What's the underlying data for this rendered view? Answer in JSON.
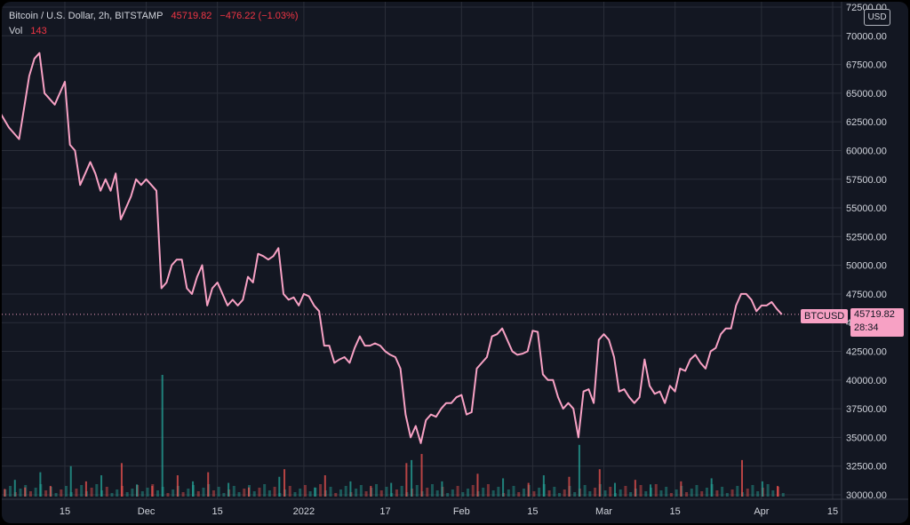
{
  "header": {
    "symbol_line": "Bitcoin / U.S. Dollar, 2h, BITSTAMP",
    "last_price": "45719.82",
    "change": "−476.22 (−1.03%)",
    "volume_label": "Vol",
    "volume_value": "143"
  },
  "price_scale": {
    "currency": "USD",
    "tick_labels": [
      "72500.00",
      "70000.00",
      "67500.00",
      "65000.00",
      "62500.00",
      "60000.00",
      "57500.00",
      "55000.00",
      "52500.00",
      "50000.00",
      "47500.00",
      "45000.00",
      "42500.00",
      "40000.00",
      "37500.00",
      "35000.00",
      "32500.00",
      "30000.00"
    ],
    "symbol_tag": "BTCUSD",
    "last_price_tag": "45719.82",
    "countdown": "28:34"
  },
  "time_axis": {
    "tick_labels": [
      "15",
      "Dec",
      "15",
      "2022",
      "17",
      "Feb",
      "15",
      "Mar",
      "15",
      "Apr",
      "15"
    ]
  },
  "colors": {
    "background": "#131722",
    "line": "#f7a1c4",
    "grid": "#2a2e39",
    "text": "#d1d4dc",
    "volume_up": "#26a69a",
    "volume_down": "#ef5350"
  },
  "chart_data": {
    "type": "line",
    "title": "Bitcoin / U.S. Dollar, 2h, BITSTAMP",
    "ylim": [
      30000,
      72500
    ],
    "xlim": [
      "2021-11-02",
      "2022-04-19"
    ],
    "grid": true,
    "series": [
      {
        "name": "BTCUSD",
        "points": [
          [
            "2021-11-02",
            63500
          ],
          [
            "2021-11-04",
            62000
          ],
          [
            "2021-11-06",
            61000
          ],
          [
            "2021-11-08",
            66500
          ],
          [
            "2021-11-09",
            68000
          ],
          [
            "2021-11-10",
            68500
          ],
          [
            "2021-11-11",
            65000
          ],
          [
            "2021-11-12",
            64500
          ],
          [
            "2021-11-13",
            64000
          ],
          [
            "2021-11-14",
            65000
          ],
          [
            "2021-11-15",
            66000
          ],
          [
            "2021-11-16",
            60500
          ],
          [
            "2021-11-17",
            60000
          ],
          [
            "2021-11-18",
            57000
          ],
          [
            "2021-11-19",
            58000
          ],
          [
            "2021-11-20",
            59000
          ],
          [
            "2021-11-21",
            58000
          ],
          [
            "2021-11-22",
            56500
          ],
          [
            "2021-11-23",
            57500
          ],
          [
            "2021-11-24",
            56500
          ],
          [
            "2021-11-25",
            58000
          ],
          [
            "2021-11-26",
            54000
          ],
          [
            "2021-11-27",
            55000
          ],
          [
            "2021-11-28",
            56000
          ],
          [
            "2021-11-29",
            57500
          ],
          [
            "2021-11-30",
            57000
          ],
          [
            "2021-12-01",
            57500
          ],
          [
            "2021-12-02",
            57000
          ],
          [
            "2021-12-03",
            56500
          ],
          [
            "2021-12-04",
            48000
          ],
          [
            "2021-12-05",
            48500
          ],
          [
            "2021-12-06",
            50000
          ],
          [
            "2021-12-07",
            50500
          ],
          [
            "2021-12-08",
            50500
          ],
          [
            "2021-12-09",
            48000
          ],
          [
            "2021-12-10",
            47500
          ],
          [
            "2021-12-11",
            49000
          ],
          [
            "2021-12-12",
            50000
          ],
          [
            "2021-12-13",
            46500
          ],
          [
            "2021-12-14",
            48000
          ],
          [
            "2021-12-15",
            48500
          ],
          [
            "2021-12-16",
            47500
          ],
          [
            "2021-12-17",
            46500
          ],
          [
            "2021-12-18",
            47000
          ],
          [
            "2021-12-19",
            46500
          ],
          [
            "2021-12-20",
            47000
          ],
          [
            "2021-12-21",
            49000
          ],
          [
            "2021-12-22",
            48500
          ],
          [
            "2021-12-23",
            51000
          ],
          [
            "2021-12-24",
            50800
          ],
          [
            "2021-12-25",
            50500
          ],
          [
            "2021-12-26",
            50800
          ],
          [
            "2021-12-27",
            51500
          ],
          [
            "2021-12-28",
            47500
          ],
          [
            "2021-12-29",
            47000
          ],
          [
            "2021-12-30",
            47200
          ],
          [
            "2021-12-31",
            46500
          ],
          [
            "2022-01-01",
            47500
          ],
          [
            "2022-01-02",
            47300
          ],
          [
            "2022-01-03",
            46500
          ],
          [
            "2022-01-04",
            46000
          ],
          [
            "2022-01-05",
            43000
          ],
          [
            "2022-01-06",
            43000
          ],
          [
            "2022-01-07",
            41500
          ],
          [
            "2022-01-08",
            41800
          ],
          [
            "2022-01-09",
            42000
          ],
          [
            "2022-01-10",
            41500
          ],
          [
            "2022-01-11",
            42800
          ],
          [
            "2022-01-12",
            43800
          ],
          [
            "2022-01-13",
            43000
          ],
          [
            "2022-01-14",
            43000
          ],
          [
            "2022-01-15",
            43200
          ],
          [
            "2022-01-16",
            43000
          ],
          [
            "2022-01-17",
            42500
          ],
          [
            "2022-01-18",
            42200
          ],
          [
            "2022-01-19",
            42000
          ],
          [
            "2022-01-20",
            41000
          ],
          [
            "2022-01-21",
            37000
          ],
          [
            "2022-01-22",
            35000
          ],
          [
            "2022-01-23",
            36000
          ],
          [
            "2022-01-24",
            34500
          ],
          [
            "2022-01-25",
            36500
          ],
          [
            "2022-01-26",
            37000
          ],
          [
            "2022-01-27",
            36800
          ],
          [
            "2022-01-28",
            37500
          ],
          [
            "2022-01-29",
            38000
          ],
          [
            "2022-01-30",
            38000
          ],
          [
            "2022-01-31",
            38500
          ],
          [
            "2022-02-01",
            38700
          ],
          [
            "2022-02-02",
            37000
          ],
          [
            "2022-02-03",
            37200
          ],
          [
            "2022-02-04",
            41000
          ],
          [
            "2022-02-05",
            41500
          ],
          [
            "2022-02-06",
            42000
          ],
          [
            "2022-02-07",
            43800
          ],
          [
            "2022-02-08",
            44000
          ],
          [
            "2022-02-09",
            44500
          ],
          [
            "2022-02-10",
            43500
          ],
          [
            "2022-02-11",
            42500
          ],
          [
            "2022-02-12",
            42200
          ],
          [
            "2022-02-13",
            42300
          ],
          [
            "2022-02-14",
            42500
          ],
          [
            "2022-02-15",
            44300
          ],
          [
            "2022-02-16",
            44200
          ],
          [
            "2022-02-17",
            40500
          ],
          [
            "2022-02-18",
            40000
          ],
          [
            "2022-02-19",
            40000
          ],
          [
            "2022-02-20",
            38500
          ],
          [
            "2022-02-21",
            37500
          ],
          [
            "2022-02-22",
            38000
          ],
          [
            "2022-02-23",
            37500
          ],
          [
            "2022-02-24",
            35000
          ],
          [
            "2022-02-25",
            39000
          ],
          [
            "2022-02-26",
            39200
          ],
          [
            "2022-02-27",
            38000
          ],
          [
            "2022-02-28",
            43500
          ],
          [
            "2022-03-01",
            44000
          ],
          [
            "2022-03-02",
            43500
          ],
          [
            "2022-03-03",
            42000
          ],
          [
            "2022-03-04",
            39000
          ],
          [
            "2022-03-05",
            39200
          ],
          [
            "2022-03-06",
            38500
          ],
          [
            "2022-03-07",
            38000
          ],
          [
            "2022-03-08",
            38500
          ],
          [
            "2022-03-09",
            41800
          ],
          [
            "2022-03-10",
            39500
          ],
          [
            "2022-03-11",
            38800
          ],
          [
            "2022-03-12",
            39000
          ],
          [
            "2022-03-13",
            38000
          ],
          [
            "2022-03-14",
            39500
          ],
          [
            "2022-03-15",
            39000
          ],
          [
            "2022-03-16",
            41000
          ],
          [
            "2022-03-17",
            40800
          ],
          [
            "2022-03-18",
            41800
          ],
          [
            "2022-03-19",
            42200
          ],
          [
            "2022-03-20",
            41500
          ],
          [
            "2022-03-21",
            41000
          ],
          [
            "2022-03-22",
            42500
          ],
          [
            "2022-03-23",
            42800
          ],
          [
            "2022-03-24",
            44000
          ],
          [
            "2022-03-25",
            44500
          ],
          [
            "2022-03-26",
            44500
          ],
          [
            "2022-03-27",
            46500
          ],
          [
            "2022-03-28",
            47500
          ],
          [
            "2022-03-29",
            47500
          ],
          [
            "2022-03-30",
            47000
          ],
          [
            "2022-03-31",
            46000
          ],
          [
            "2022-04-01",
            46500
          ],
          [
            "2022-04-02",
            46500
          ],
          [
            "2022-04-03",
            46800
          ],
          [
            "2022-04-04",
            46200
          ],
          [
            "2022-04-05",
            45720
          ]
        ]
      }
    ],
    "volume": {
      "name": "Vol",
      "y_max": 40000,
      "bars": [
        [
          "2021-11-03",
          2500
        ],
        [
          "2021-11-05",
          5500
        ],
        [
          "2021-11-07",
          3000
        ],
        [
          "2021-11-10",
          8000
        ],
        [
          "2021-11-12",
          3500
        ],
        [
          "2021-11-16",
          10000
        ],
        [
          "2021-11-19",
          5000
        ],
        [
          "2021-11-22",
          7000
        ],
        [
          "2021-11-26",
          11000
        ],
        [
          "2021-11-29",
          4000
        ],
        [
          "2021-12-02",
          3500
        ],
        [
          "2021-12-04",
          40000
        ],
        [
          "2021-12-07",
          7000
        ],
        [
          "2021-12-10",
          5000
        ],
        [
          "2021-12-13",
          8000
        ],
        [
          "2021-12-17",
          4500
        ],
        [
          "2021-12-21",
          3000
        ],
        [
          "2021-12-27",
          6500
        ],
        [
          "2021-12-28",
          9000
        ],
        [
          "2022-01-03",
          3000
        ],
        [
          "2022-01-05",
          7000
        ],
        [
          "2022-01-10",
          5000
        ],
        [
          "2022-01-14",
          3500
        ],
        [
          "2022-01-18",
          4500
        ],
        [
          "2022-01-21",
          11000
        ],
        [
          "2022-01-22",
          12000
        ],
        [
          "2022-01-24",
          14000
        ],
        [
          "2022-01-28",
          5000
        ],
        [
          "2022-02-04",
          7500
        ],
        [
          "2022-02-09",
          6000
        ],
        [
          "2022-02-14",
          4500
        ],
        [
          "2022-02-17",
          7000
        ],
        [
          "2022-02-22",
          6500
        ],
        [
          "2022-02-24",
          17000
        ],
        [
          "2022-02-28",
          9000
        ],
        [
          "2022-03-03",
          4500
        ],
        [
          "2022-03-07",
          5500
        ],
        [
          "2022-03-10",
          4000
        ],
        [
          "2022-03-16",
          5000
        ],
        [
          "2022-03-22",
          6000
        ],
        [
          "2022-03-28",
          12000
        ],
        [
          "2022-04-01",
          5000
        ],
        [
          "2022-04-04",
          3500
        ]
      ]
    },
    "last_value": 45719.82
  }
}
